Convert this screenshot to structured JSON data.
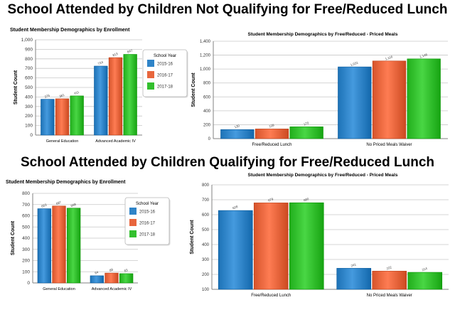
{
  "headings": {
    "top": "School Attended by Children Not Qualifying for Free/Reduced Lunch",
    "bottom": "School Attended by Children Qualifying for Free/Reduced Lunch"
  },
  "colors": {
    "2015-16": "#2f84c8",
    "2016-17": "#e8663d",
    "2017-18": "#33c02e",
    "grid": "#c8c8c8",
    "axis": "#808080"
  },
  "chart_data": [
    {
      "type": "bar",
      "title": "Student Membership Demographics by Enrollment",
      "ylabel": "Student Count",
      "xlabel": "",
      "ylim": [
        0,
        1000
      ],
      "yticks": [
        "0",
        "100",
        "200",
        "300",
        "400",
        "500",
        "600",
        "700",
        "800",
        "900",
        "1,000"
      ],
      "categories": [
        "General Education",
        "Advanced Academic IV"
      ],
      "series": [
        {
          "name": "2015-16",
          "values": [
            376,
            724
          ],
          "labels": [
            "376",
            "724"
          ]
        },
        {
          "name": "2016-17",
          "values": [
            381,
            813
          ],
          "labels": [
            "381",
            "813"
          ]
        },
        {
          "name": "2017-18",
          "values": [
            411,
            847
          ],
          "labels": [
            "411",
            "847"
          ]
        }
      ],
      "legend": {
        "title": "School Year",
        "placement": "right"
      },
      "grid": true
    },
    {
      "type": "bar",
      "title": "Student Membership Demographics by Free/Reduced - Priced Meals",
      "ylabel": "Student Count",
      "xlabel": "",
      "ylim": [
        0,
        1400
      ],
      "yticks": [
        "0",
        "200",
        "400",
        "600",
        "800",
        "1,000",
        "1,200",
        "1,400"
      ],
      "categories": [
        "Free/Reduced Lunch",
        "No Priced Meals Waiver"
      ],
      "series": [
        {
          "name": "2015-16",
          "values": [
            130,
            1031
          ],
          "labels": [
            "130",
            "1,031"
          ]
        },
        {
          "name": "2016-17",
          "values": [
            139,
            1116
          ],
          "labels": [
            "139",
            "1,116"
          ]
        },
        {
          "name": "2017-18",
          "values": [
            170,
            1146
          ],
          "labels": [
            "170",
            "1,146"
          ]
        }
      ],
      "grid": true
    },
    {
      "type": "bar",
      "title": "Student Membership Demographics by Enrollment",
      "ylabel": "Student Count",
      "xlabel": "",
      "ylim": [
        0,
        800
      ],
      "yticks": [
        "0",
        "100",
        "200",
        "300",
        "400",
        "500",
        "600",
        "700",
        "800"
      ],
      "categories": [
        "General Education",
        "Advanced Academic IV"
      ],
      "series": [
        {
          "name": "2015-16",
          "values": [
            663,
            64
          ],
          "labels": [
            "663",
            "64"
          ]
        },
        {
          "name": "2016-17",
          "values": [
            687,
            88
          ],
          "labels": [
            "687",
            "88"
          ]
        },
        {
          "name": "2017-18",
          "values": [
            668,
            83
          ],
          "labels": [
            "668",
            "83"
          ]
        }
      ],
      "legend": {
        "title": "School Year",
        "placement": "right"
      },
      "grid": true
    },
    {
      "type": "bar",
      "title": "Student Membership Demographics by Free/Reduced - Priced Meals",
      "ylabel": "Student Count",
      "xlabel": "",
      "ylim": [
        100,
        800
      ],
      "yticks": [
        "100",
        "200",
        "300",
        "400",
        "500",
        "600",
        "700",
        "800"
      ],
      "categories": [
        "Free/Reduced Lunch",
        "No Priced Meals Waiver"
      ],
      "series": [
        {
          "name": "2015-16",
          "values": [
            628,
            241
          ],
          "labels": [
            "628",
            "241"
          ]
        },
        {
          "name": "2016-17",
          "values": [
            679,
            222
          ],
          "labels": [
            "679",
            "222"
          ]
        },
        {
          "name": "2017-18",
          "values": [
            680,
            214
          ],
          "labels": [
            "680",
            "214"
          ]
        }
      ],
      "grid": true
    }
  ]
}
